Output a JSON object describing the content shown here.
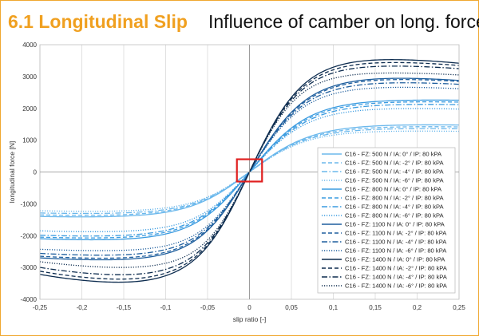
{
  "header": {
    "section_title": "6.1 Longitudinal Slip",
    "slide_title": "Influence of camber on long. force"
  },
  "chart_data": {
    "type": "line",
    "title": "",
    "xlabel": "slip ratio [-]",
    "ylabel": "longitudinal force [N]",
    "xlim": [
      -0.25,
      0.25
    ],
    "ylim": [
      -4000,
      4000
    ],
    "xticks": [
      -0.25,
      -0.2,
      -0.15,
      -0.1,
      -0.05,
      0,
      0.05,
      0.1,
      0.15,
      0.2,
      0.25
    ],
    "xtick_labels": [
      "-0,25",
      "-0,2",
      "-0,15",
      "-0,1",
      "-0,05",
      "0",
      "0,05",
      "0,1",
      "0,15",
      "0,2",
      "0,25"
    ],
    "yticks": [
      -4000,
      -3000,
      -2000,
      -1000,
      0,
      1000,
      2000,
      3000,
      4000
    ],
    "ytick_labels": [
      "-4000",
      "-3000",
      "-2000",
      "-1000",
      "0",
      "1000",
      "2000",
      "3000",
      "4000"
    ],
    "grid": "vertical",
    "legend_position": "bottom-right",
    "highlight_box": {
      "x": [
        -0.015,
        0.015
      ],
      "y": [
        -300,
        400
      ],
      "color": "#e02020"
    },
    "series": [
      {
        "name": "C16 - FZ: 500 N / IA: 0° / IP: 80 kPA",
        "color": "#6bb8ec",
        "dash": "solid",
        "peak_pos": 1500,
        "x_peak_pos": 0.14,
        "end_pos": 1480,
        "peak_neg": -1430,
        "x_peak_neg": -0.14,
        "end_neg": -1400,
        "stiffness": 20000
      },
      {
        "name": "C16 - FZ: 500 N / IA: -2° / IP: 80 kPA",
        "color": "#6bb8ec",
        "dash": "dashed",
        "peak_pos": 1440,
        "x_peak_pos": 0.14,
        "end_pos": 1420,
        "peak_neg": -1380,
        "x_peak_neg": -0.14,
        "end_neg": -1350,
        "stiffness": 19500
      },
      {
        "name": "C16 - FZ: 500 N / IA: -4° / IP: 80 kPA",
        "color": "#6bb8ec",
        "dash": "dashdot",
        "peak_pos": 1380,
        "x_peak_pos": 0.14,
        "end_pos": 1360,
        "peak_neg": -1320,
        "x_peak_neg": -0.14,
        "end_neg": -1290,
        "stiffness": 19000
      },
      {
        "name": "C16 - FZ: 500 N / IA: -6° / IP: 80 kPA",
        "color": "#6bb8ec",
        "dash": "dotted",
        "peak_pos": 1300,
        "x_peak_pos": 0.14,
        "end_pos": 1280,
        "peak_neg": -1250,
        "x_peak_neg": -0.14,
        "end_neg": -1220,
        "stiffness": 18500
      },
      {
        "name": "C16 - FZ: 800 N / IA: 0° / IP: 80 kPA",
        "color": "#3a9be0",
        "dash": "solid",
        "peak_pos": 2280,
        "x_peak_pos": 0.13,
        "end_pos": 2260,
        "peak_neg": -2160,
        "x_peak_neg": -0.13,
        "end_neg": -2100,
        "stiffness": 32000
      },
      {
        "name": "C16 - FZ: 800 N / IA: -2° / IP: 80 kPA",
        "color": "#3a9be0",
        "dash": "dashed",
        "peak_pos": 2230,
        "x_peak_pos": 0.13,
        "end_pos": 2200,
        "peak_neg": -2100,
        "x_peak_neg": -0.13,
        "end_neg": -2050,
        "stiffness": 31000
      },
      {
        "name": "C16 - FZ: 800 N / IA: -4° / IP: 80 kPA",
        "color": "#3a9be0",
        "dash": "dashdot",
        "peak_pos": 2150,
        "x_peak_pos": 0.13,
        "end_pos": 2120,
        "peak_neg": -2040,
        "x_peak_neg": -0.13,
        "end_neg": -1990,
        "stiffness": 30000
      },
      {
        "name": "C16 - FZ: 800 N / IA: -6° / IP: 80 kPA",
        "color": "#3a9be0",
        "dash": "dotted",
        "peak_pos": 2020,
        "x_peak_pos": 0.13,
        "end_pos": 1980,
        "peak_neg": -1900,
        "x_peak_neg": -0.13,
        "end_neg": -1850,
        "stiffness": 29000
      },
      {
        "name": "C16 - FZ: 1100 N / IA: 0° / IP: 80 kPA",
        "color": "#1f5f9e",
        "dash": "solid",
        "peak_pos": 3000,
        "x_peak_pos": 0.12,
        "end_pos": 2880,
        "peak_neg": -2800,
        "x_peak_neg": -0.12,
        "end_neg": -2700,
        "stiffness": 44000
      },
      {
        "name": "C16 - FZ: 1100 N / IA: -2° / IP: 80 kPA",
        "color": "#1f5f9e",
        "dash": "dashed",
        "peak_pos": 2960,
        "x_peak_pos": 0.12,
        "end_pos": 2850,
        "peak_neg": -2750,
        "x_peak_neg": -0.12,
        "end_neg": -2650,
        "stiffness": 43000
      },
      {
        "name": "C16 - FZ: 1100 N / IA: -4° / IP: 80 kPA",
        "color": "#1f5f9e",
        "dash": "dashdot",
        "peak_pos": 2850,
        "x_peak_pos": 0.12,
        "end_pos": 2760,
        "peak_neg": -2650,
        "x_peak_neg": -0.12,
        "end_neg": -2560,
        "stiffness": 42000
      },
      {
        "name": "C16 - FZ: 1100 N / IA: -6° / IP: 80 kPA",
        "color": "#1f5f9e",
        "dash": "dotted",
        "peak_pos": 2700,
        "x_peak_pos": 0.12,
        "end_pos": 2620,
        "peak_neg": -2500,
        "x_peak_neg": -0.12,
        "end_neg": -2430,
        "stiffness": 41000
      },
      {
        "name": "C16 - FZ: 1400 N / IA: 0° / IP: 80 kPA",
        "color": "#0d2c4f",
        "dash": "solid",
        "peak_pos": 3600,
        "x_peak_pos": 0.11,
        "end_pos": 3420,
        "peak_neg": -3550,
        "x_peak_neg": -0.11,
        "end_neg": -3220,
        "stiffness": 56000
      },
      {
        "name": "C16 - FZ: 1400 N / IA: -2° / IP: 80 kPA",
        "color": "#0d2c4f",
        "dash": "dashed",
        "peak_pos": 3500,
        "x_peak_pos": 0.11,
        "end_pos": 3350,
        "peak_neg": -3450,
        "x_peak_neg": -0.11,
        "end_neg": -3120,
        "stiffness": 55000
      },
      {
        "name": "C16 - FZ: 1400 N / IA: -4° / IP: 80 kPA",
        "color": "#0d2c4f",
        "dash": "dashdot",
        "peak_pos": 3380,
        "x_peak_pos": 0.11,
        "end_pos": 3250,
        "peak_neg": -3300,
        "x_peak_neg": -0.11,
        "end_neg": -3000,
        "stiffness": 54000
      },
      {
        "name": "C16 - FZ: 1400 N / IA: -6° / IP: 80 kPA",
        "color": "#0d2c4f",
        "dash": "dotted",
        "peak_pos": 3150,
        "x_peak_pos": 0.11,
        "end_pos": 3050,
        "peak_neg": -3050,
        "x_peak_neg": -0.11,
        "end_neg": -2820,
        "stiffness": 53000
      }
    ]
  }
}
